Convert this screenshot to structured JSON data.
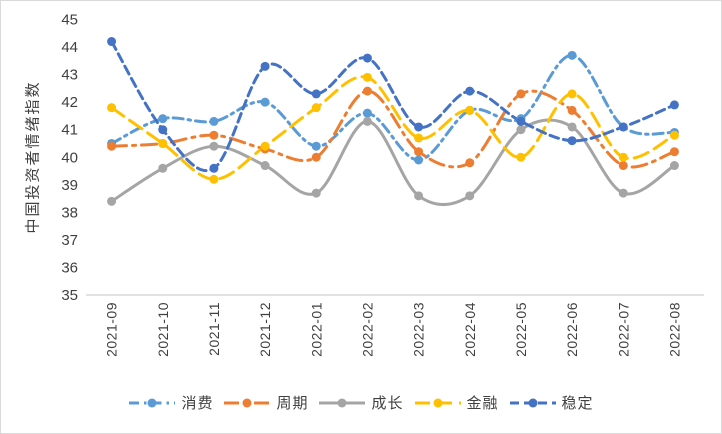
{
  "chart_data": {
    "type": "line",
    "title": "",
    "xlabel": "",
    "ylabel": "中国投资者情绪指数",
    "ylim": [
      35,
      45
    ],
    "y_ticks": [
      45,
      44,
      43,
      42,
      41,
      40,
      39,
      38,
      37,
      36,
      35
    ],
    "grid": false,
    "smoothed": true,
    "legend_position": "bottom",
    "categories": [
      "2021-09",
      "2021-10",
      "2021-11",
      "2021-12",
      "2022-01",
      "2022-02",
      "2022-03",
      "2022-04",
      "2022-05",
      "2022-06",
      "2022-07",
      "2022-08"
    ],
    "series": [
      {
        "name": "消费",
        "color": "#5B9BD5",
        "dash": "dashdot",
        "values": [
          40.5,
          41.4,
          41.3,
          42.0,
          40.4,
          41.6,
          39.9,
          41.7,
          41.4,
          43.7,
          41.1,
          40.9
        ]
      },
      {
        "name": "周期",
        "color": "#ED7D31",
        "dash": "longdashdot",
        "values": [
          40.4,
          40.5,
          40.8,
          40.3,
          40.0,
          42.4,
          40.2,
          39.8,
          42.3,
          41.7,
          39.7,
          40.2
        ]
      },
      {
        "name": "成长",
        "color": "#A5A5A5",
        "dash": "solid",
        "values": [
          38.4,
          39.6,
          40.4,
          39.7,
          38.7,
          41.3,
          38.6,
          38.6,
          41.0,
          41.1,
          38.7,
          39.7
        ]
      },
      {
        "name": "金融",
        "color": "#FFC000",
        "dash": "longdash",
        "values": [
          41.8,
          40.5,
          39.2,
          40.4,
          41.8,
          42.9,
          40.7,
          41.7,
          40.0,
          42.3,
          40.0,
          40.8
        ]
      },
      {
        "name": "稳定",
        "color": "#4472C4",
        "dash": "dash",
        "values": [
          44.2,
          41.0,
          39.6,
          43.3,
          42.3,
          43.6,
          41.1,
          42.4,
          41.3,
          40.6,
          41.1,
          41.9
        ]
      }
    ]
  },
  "colors": {
    "axis_line": "#d9d9d9",
    "text": "#404040",
    "frame_border": "#d9d9d9",
    "background": "#ffffff"
  }
}
